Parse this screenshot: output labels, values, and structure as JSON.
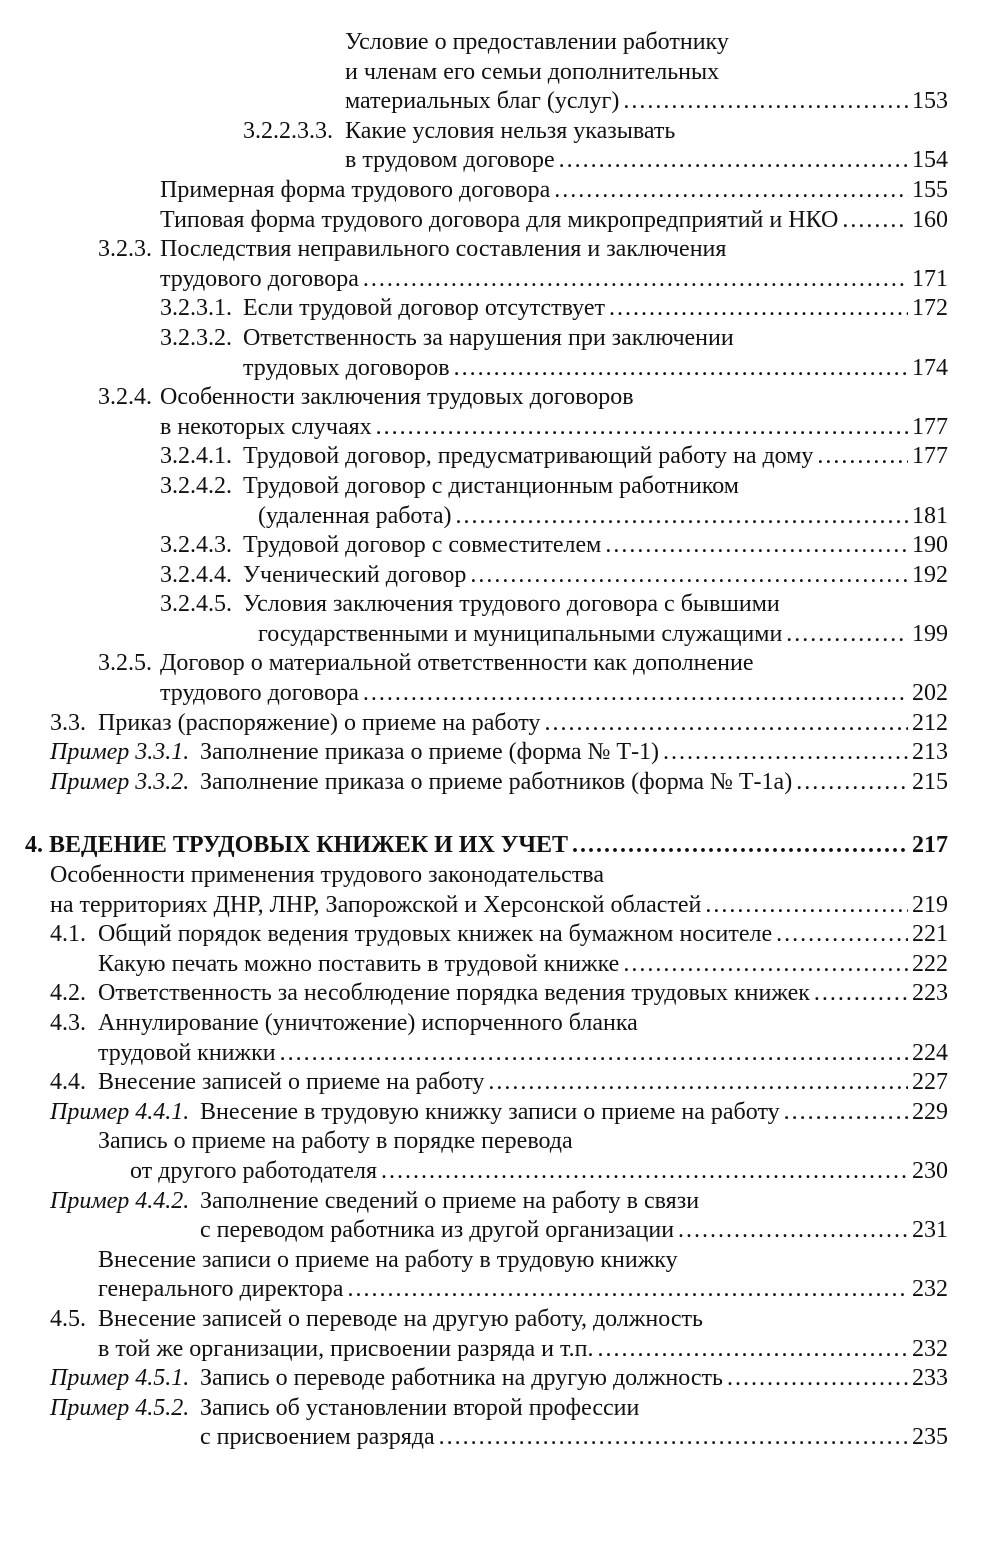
{
  "entries": [
    {
      "prefix": "",
      "lines": [
        "Условие о предоставлении работнику",
        "и членам его семьи дополнительных",
        "материальных благ (услуг)"
      ],
      "page": "153"
    },
    {
      "prefix": "3.2.2.3.3.",
      "lines": [
        "Какие условия нельзя указывать",
        "в трудовом договоре"
      ],
      "page": "154"
    },
    {
      "prefix": "",
      "lines": [
        "Примерная форма трудового договора"
      ],
      "page": "155"
    },
    {
      "prefix": "",
      "lines": [
        "Типовая форма трудового договора для микропредприятий и НКО"
      ],
      "page": "160"
    },
    {
      "prefix": "3.2.3.",
      "lines": [
        "Последствия неправильного составления и заключения",
        "трудового договора"
      ],
      "page": "171"
    },
    {
      "prefix": "3.2.3.1.",
      "lines": [
        "Если трудовой договор отсутствует"
      ],
      "page": "172"
    },
    {
      "prefix": "3.2.3.2.",
      "lines": [
        "Ответственность за нарушения при заключении",
        "трудовых договоров"
      ],
      "page": "174"
    },
    {
      "prefix": "3.2.4.",
      "lines": [
        "Особенности заключения трудовых договоров",
        "в некоторых случаях"
      ],
      "page": "177"
    },
    {
      "prefix": "3.2.4.1.",
      "lines": [
        "Трудовой договор, предусматривающий работу на дому"
      ],
      "page": "177"
    },
    {
      "prefix": "3.2.4.2.",
      "lines": [
        "Трудовой договор с дистанционным работником",
        "(удаленная работа)"
      ],
      "page": "181"
    },
    {
      "prefix": "3.2.4.3.",
      "lines": [
        "Трудовой договор с совместителем"
      ],
      "page": "190"
    },
    {
      "prefix": "3.2.4.4.",
      "lines": [
        "Ученический договор"
      ],
      "page": "192"
    },
    {
      "prefix": "3.2.4.5.",
      "lines": [
        "Условия заключения трудового договора с бывшими",
        "государственными и муниципальными служащими"
      ],
      "page": "199"
    },
    {
      "prefix": "3.2.5.",
      "lines": [
        "Договор о материальной ответственности как дополнение",
        "трудового договора"
      ],
      "page": "202"
    },
    {
      "prefix": "3.3.",
      "lines": [
        "Приказ (распоряжение) о приеме на работу"
      ],
      "page": "212"
    },
    {
      "prefix": "Пример 3.3.1.",
      "prefix_italic": true,
      "lines": [
        "Заполнение приказа о приеме (форма № Т-1)"
      ],
      "page": "213"
    },
    {
      "prefix": "Пример 3.3.2.",
      "prefix_italic": true,
      "lines": [
        "Заполнение приказа о приеме работников (форма № Т-1а)"
      ],
      "page": "215"
    },
    {
      "prefix": "",
      "bold": true,
      "lines": [
        "4. ВЕДЕНИЕ ТРУДОВЫХ КНИЖЕК И ИХ УЧЕТ"
      ],
      "page": "217"
    },
    {
      "prefix": "",
      "lines": [
        "Особенности применения трудового законодательства",
        "на территориях ДНР, ЛНР, Запорожской и Херсонской областей"
      ],
      "page": "219"
    },
    {
      "prefix": "4.1.",
      "lines": [
        "Общий порядок ведения трудовых книжек на бумажном носителе"
      ],
      "page": "221"
    },
    {
      "prefix": "",
      "lines": [
        "Какую печать можно поставить в трудовой книжке"
      ],
      "page": "222"
    },
    {
      "prefix": "4.2.",
      "lines": [
        "Ответственность за несоблюдение порядка ведения трудовых книжек"
      ],
      "page": "223"
    },
    {
      "prefix": "4.3.",
      "lines": [
        "Аннулирование (уничтожение) испорченного бланка",
        "трудовой книжки"
      ],
      "page": "224"
    },
    {
      "prefix": "4.4.",
      "lines": [
        "Внесение записей о приеме на работу"
      ],
      "page": "227"
    },
    {
      "prefix": "Пример 4.4.1.",
      "prefix_italic": true,
      "lines": [
        "Внесение в трудовую книжку записи о приеме на работу"
      ],
      "page": "229"
    },
    {
      "prefix": "",
      "lines": [
        "Запись о приеме на работу в порядке перевода",
        "от другого работодателя"
      ],
      "page": "230"
    },
    {
      "prefix": "Пример 4.4.2.",
      "prefix_italic": true,
      "lines": [
        "Заполнение сведений о приеме на работу в связи",
        "с переводом работника из другой организации"
      ],
      "page": "231"
    },
    {
      "prefix": "",
      "lines": [
        "Внесение записи о приеме на работу в трудовую книжку",
        "генерального директора"
      ],
      "page": "232"
    },
    {
      "prefix": "4.5.",
      "lines": [
        "Внесение записей о переводе на другую работу, должность",
        "в той же организации, присвоении разряда и т.п."
      ],
      "page": "232"
    },
    {
      "prefix": "Пример 4.5.1.",
      "prefix_italic": true,
      "lines": [
        "Запись о переводе работника на другую должность"
      ],
      "page": "233"
    },
    {
      "prefix": "Пример 4.5.2.",
      "prefix_italic": true,
      "lines": [
        "Запись об установлении второй профессии",
        "с присвоением разряда"
      ],
      "page": "235"
    }
  ]
}
